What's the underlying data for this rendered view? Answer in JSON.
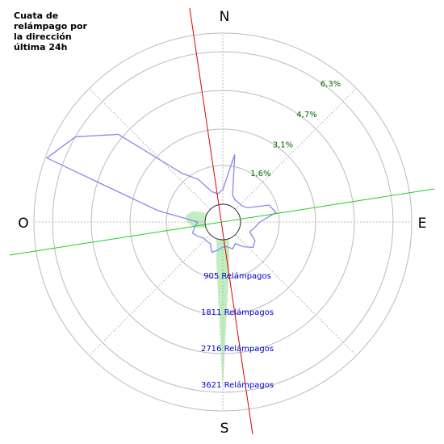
{
  "chart_data": {
    "type": "polar",
    "title_lines": [
      "Cuata de",
      "relámpago por",
      "la dirección",
      "última 24h"
    ],
    "compass": {
      "north": "N",
      "east": "E",
      "south": "S",
      "west": "O"
    },
    "angles": [
      0,
      10,
      20,
      30,
      40,
      50,
      60,
      70,
      80,
      90,
      100,
      110,
      120,
      130,
      140,
      150,
      160,
      170,
      180,
      190,
      200,
      210,
      220,
      230,
      240,
      250,
      260,
      270,
      280,
      290,
      300,
      310,
      320,
      330,
      340,
      350
    ],
    "series": [
      {
        "color": "#8888ee",
        "axis": "r",
        "values": [
          0.6,
          2.1,
          0.45,
          0.3,
          0.3,
          0.3,
          0.45,
          1.3,
          1.5,
          0.8,
          0.6,
          0.45,
          0.8,
          0.9,
          0.6,
          0.3,
          0.45,
          0.3,
          0.3,
          0.45,
          0.6,
          0.3,
          0.3,
          0.3,
          0.45,
          0.6,
          0.45,
          0.3,
          2.0,
          7.0,
          6.3,
          4.9,
          1.9,
          1.3,
          0.6,
          0.45
        ]
      },
      {
        "color": "#90dd90",
        "axis": "r2",
        "values": [
          0,
          0,
          0,
          0,
          0,
          0,
          0,
          0,
          0,
          0,
          0,
          0,
          0,
          0,
          0,
          0,
          0,
          500,
          3780,
          500,
          0,
          0,
          0,
          0,
          0,
          0,
          300,
          450,
          500,
          350,
          0,
          0,
          0,
          0,
          0,
          0
        ]
      }
    ],
    "rlim": [
      0,
      7.07
    ],
    "rticks": [
      {
        "value": 1.6,
        "label": "1,6%"
      },
      {
        "value": 3.1,
        "label": "3,1%"
      },
      {
        "value": 4.7,
        "label": "4,7%"
      },
      {
        "value": 6.3,
        "label": "6,3%"
      }
    ],
    "r2lim": [
      0,
      4264
    ],
    "r2ticks": [
      {
        "value": 905,
        "label": "905 Relámpagos"
      },
      {
        "value": 1811,
        "label": "1811 Relámpagos"
      },
      {
        "value": 2716,
        "label": "2716 Relámpagos"
      },
      {
        "value": 3621,
        "label": "3621 Relámpagos"
      }
    ]
  }
}
